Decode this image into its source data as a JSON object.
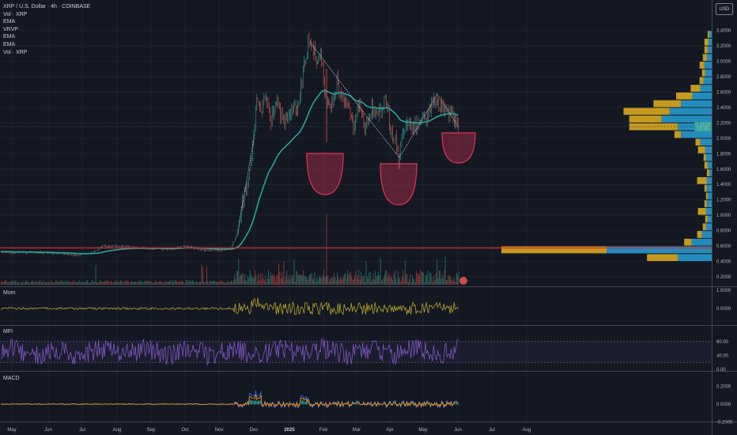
{
  "header": {
    "title": "XRP / U.S. Dollar · 4h · COINBASE",
    "indicators": [
      "Vol · XRP",
      "EMA",
      "VRVP",
      "EMA",
      "EMA",
      "Vol · XRP"
    ],
    "currency_button": "USD"
  },
  "colors": {
    "background": "#141823",
    "ema": "#26a69a",
    "support_line": "#e0282e",
    "pattern": "#e0345a",
    "momentum": "#b5a52d",
    "mfi": "#7e57c2",
    "vp_up": "#26a1d9",
    "vp_down": "#e3b120",
    "price_label": "#26a69a"
  },
  "price_labels": {
    "current": "2.1519",
    "countdown": "02:36"
  },
  "support_level": 0.575,
  "chart_data": [
    {
      "type": "line",
      "pane": "price",
      "title": "XRP / U.S. Dollar · 4h · COINBASE",
      "x": [
        "May",
        "Jun",
        "Jul",
        "Aug",
        "Sep",
        "Oct",
        "Nov",
        "Dec",
        "2025",
        "Feb",
        "Mar",
        "Apr",
        "May",
        "Jun",
        "Jul",
        "Aug"
      ],
      "yticks": [
        "3.4000",
        "3.2000",
        "3.0000",
        "2.8000",
        "2.6000",
        "2.4000",
        "2.2000",
        "2.0000",
        "1.8000",
        "1.6000",
        "1.4000",
        "1.2000",
        "1.0000",
        "0.8000",
        "0.6000",
        "0.4000",
        "0.2000"
      ],
      "ylim": [
        0.1,
        3.5
      ],
      "series": [
        {
          "name": "XRP",
          "x": [
            "May",
            "Jun",
            "Jul",
            "Aug",
            "Sep",
            "Oct",
            "Nov",
            "Dec",
            "2025",
            "Feb",
            "Mar",
            "Apr",
            "May",
            "Jun"
          ],
          "values": [
            0.52,
            0.52,
            0.47,
            0.6,
            0.58,
            0.55,
            0.55,
            2.2,
            2.35,
            2.7,
            2.35,
            2.1,
            2.3,
            2.15
          ]
        },
        {
          "name": "EMA",
          "x": [
            "May",
            "Jun",
            "Jul",
            "Aug",
            "Sep",
            "Oct",
            "Nov",
            "Dec",
            "2025",
            "Feb",
            "Mar",
            "Apr",
            "May",
            "Jun"
          ],
          "values": [
            0.52,
            0.51,
            0.49,
            0.55,
            0.56,
            0.56,
            0.55,
            1.9,
            2.3,
            2.75,
            2.42,
            2.1,
            2.25,
            2.18
          ]
        }
      ],
      "volume_profile": [
        {
          "price": 3.35,
          "up": 3,
          "down": 2
        },
        {
          "price": 3.25,
          "up": 4,
          "down": 5
        },
        {
          "price": 3.15,
          "up": 5,
          "down": 4
        },
        {
          "price": 3.05,
          "up": 6,
          "down": 5
        },
        {
          "price": 2.95,
          "up": 9,
          "down": 6
        },
        {
          "price": 2.85,
          "up": 8,
          "down": 4
        },
        {
          "price": 2.75,
          "up": 10,
          "down": 5
        },
        {
          "price": 2.65,
          "up": 14,
          "down": 12
        },
        {
          "price": 2.55,
          "up": 24,
          "down": 20
        },
        {
          "price": 2.45,
          "up": 38,
          "down": 34
        },
        {
          "price": 2.35,
          "up": 52,
          "down": 57
        },
        {
          "price": 2.25,
          "up": 62,
          "down": 40
        },
        {
          "price": 2.15,
          "up": 42,
          "down": 60
        },
        {
          "price": 2.05,
          "up": 38,
          "down": 8
        },
        {
          "price": 1.95,
          "up": 14,
          "down": 6
        },
        {
          "price": 1.85,
          "up": 8,
          "down": 9
        },
        {
          "price": 1.75,
          "up": 7,
          "down": 3
        },
        {
          "price": 1.65,
          "up": 5,
          "down": 4
        },
        {
          "price": 1.55,
          "up": 3,
          "down": 3
        },
        {
          "price": 1.45,
          "up": 6,
          "down": 12
        },
        {
          "price": 1.35,
          "up": 6,
          "down": 3
        },
        {
          "price": 1.25,
          "up": 5,
          "down": 2
        },
        {
          "price": 1.15,
          "up": 6,
          "down": 3
        },
        {
          "price": 1.05,
          "up": 7,
          "down": 10
        },
        {
          "price": 0.95,
          "up": 5,
          "down": 3
        },
        {
          "price": 0.85,
          "up": 7,
          "down": 4
        },
        {
          "price": 0.75,
          "up": 12,
          "down": 6
        },
        {
          "price": 0.65,
          "up": 25,
          "down": 9
        },
        {
          "price": 0.55,
          "up": 130,
          "down": 130
        },
        {
          "price": 0.45,
          "up": 42,
          "down": 38
        }
      ]
    },
    {
      "type": "line",
      "pane": "momentum",
      "title": "Mom",
      "yticks": [
        "1.0000",
        "0.0000"
      ],
      "ylim": [
        -1.3,
        1.0
      ]
    },
    {
      "type": "line",
      "pane": "mfi",
      "title": "MFI",
      "yticks": [
        "80.00",
        "40.00",
        "0.00"
      ],
      "ylim": [
        0,
        100
      ],
      "bands": [
        80,
        20
      ]
    },
    {
      "type": "line",
      "pane": "macd",
      "title": "MACD",
      "yticks": [
        "0.2000",
        "0.0000",
        "-0.2000"
      ],
      "ylim": [
        -0.25,
        0.3
      ]
    }
  ]
}
